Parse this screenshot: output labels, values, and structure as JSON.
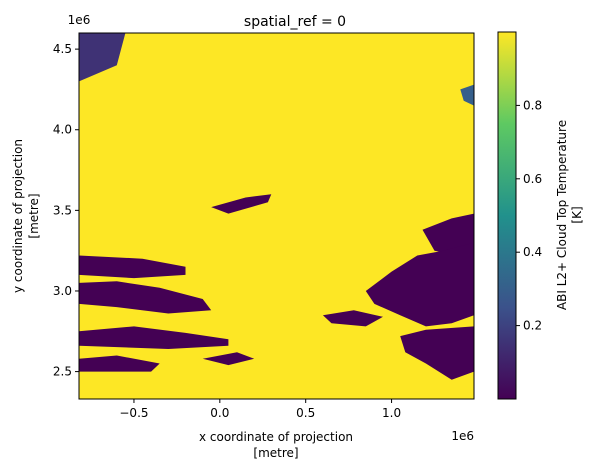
{
  "chart_data": {
    "type": "heatmap",
    "title": "spatial_ref = 0",
    "xlabel": [
      "x coordinate of projection",
      "[metre]"
    ],
    "ylabel": [
      "y coordinate of projection",
      "[metre]"
    ],
    "xlim": [
      -0.82,
      1.48
    ],
    "ylim": [
      2.33,
      4.6
    ],
    "x_offset_label": "1e6",
    "y_offset_label": "1e6",
    "x_ticks": [
      {
        "value": -0.5,
        "label": "−0.5"
      },
      {
        "value": 0.0,
        "label": "0.0"
      },
      {
        "value": 0.5,
        "label": "0.5"
      },
      {
        "value": 1.0,
        "label": "1.0"
      }
    ],
    "y_ticks": [
      {
        "value": 2.5,
        "label": "2.5"
      },
      {
        "value": 3.0,
        "label": "3.0"
      },
      {
        "value": 3.5,
        "label": "3.5"
      },
      {
        "value": 4.0,
        "label": "4.0"
      },
      {
        "value": 4.5,
        "label": "4.5"
      }
    ],
    "colorbar": {
      "label": [
        "ABI L2+ Cloud Top Temperature",
        "[K]"
      ],
      "range": [
        0.0,
        1.0
      ],
      "colormap": [
        "#440154",
        "#3b528b",
        "#21918c",
        "#5ec962",
        "#fde725"
      ],
      "ticks": [
        {
          "value": 0.2,
          "label": "0.2"
        },
        {
          "value": 0.4,
          "label": "0.4"
        },
        {
          "value": 0.6,
          "label": "0.6"
        },
        {
          "value": 0.8,
          "label": "0.8"
        }
      ]
    },
    "background_value": 1.0,
    "low_regions": [
      {
        "name": "northwest-speckle",
        "points": [
          [
            -0.82,
            4.6
          ],
          [
            -0.55,
            4.6
          ],
          [
            -0.6,
            4.4
          ],
          [
            -0.82,
            4.3
          ]
        ],
        "value": 0.15
      },
      {
        "name": "west-band-upper",
        "points": [
          [
            -0.82,
            3.22
          ],
          [
            -0.45,
            3.2
          ],
          [
            -0.2,
            3.15
          ],
          [
            -0.2,
            3.1
          ],
          [
            -0.5,
            3.08
          ],
          [
            -0.82,
            3.1
          ]
        ],
        "value": 0.0
      },
      {
        "name": "west-band-middle",
        "points": [
          [
            -0.82,
            3.05
          ],
          [
            -0.6,
            3.06
          ],
          [
            -0.35,
            3.02
          ],
          [
            -0.1,
            2.95
          ],
          [
            -0.05,
            2.88
          ],
          [
            -0.3,
            2.86
          ],
          [
            -0.6,
            2.9
          ],
          [
            -0.82,
            2.92
          ]
        ],
        "value": 0.0
      },
      {
        "name": "west-band-lower",
        "points": [
          [
            -0.82,
            2.75
          ],
          [
            -0.5,
            2.78
          ],
          [
            -0.2,
            2.74
          ],
          [
            0.05,
            2.7
          ],
          [
            0.05,
            2.66
          ],
          [
            -0.3,
            2.64
          ],
          [
            -0.82,
            2.66
          ]
        ],
        "value": 0.0
      },
      {
        "name": "west-band-bottom",
        "points": [
          [
            -0.82,
            2.58
          ],
          [
            -0.6,
            2.6
          ],
          [
            -0.35,
            2.55
          ],
          [
            -0.4,
            2.5
          ],
          [
            -0.82,
            2.5
          ]
        ],
        "value": 0.0
      },
      {
        "name": "central-streak",
        "points": [
          [
            -0.05,
            3.52
          ],
          [
            0.15,
            3.58
          ],
          [
            0.3,
            3.6
          ],
          [
            0.28,
            3.55
          ],
          [
            0.05,
            3.48
          ]
        ],
        "value": 0.0
      },
      {
        "name": "east-patch-upper",
        "points": [
          [
            1.18,
            3.38
          ],
          [
            1.35,
            3.45
          ],
          [
            1.48,
            3.48
          ],
          [
            1.48,
            3.28
          ],
          [
            1.4,
            3.22
          ],
          [
            1.25,
            3.25
          ]
        ],
        "value": 0.0
      },
      {
        "name": "east-patch-main",
        "points": [
          [
            0.85,
            3.0
          ],
          [
            1.0,
            3.12
          ],
          [
            1.15,
            3.22
          ],
          [
            1.3,
            3.25
          ],
          [
            1.48,
            3.3
          ],
          [
            1.48,
            2.85
          ],
          [
            1.35,
            2.8
          ],
          [
            1.2,
            2.78
          ],
          [
            1.05,
            2.85
          ],
          [
            0.9,
            2.92
          ]
        ],
        "value": 0.0
      },
      {
        "name": "east-patch-lower",
        "points": [
          [
            1.05,
            2.72
          ],
          [
            1.2,
            2.76
          ],
          [
            1.48,
            2.78
          ],
          [
            1.48,
            2.5
          ],
          [
            1.35,
            2.45
          ],
          [
            1.2,
            2.55
          ],
          [
            1.08,
            2.62
          ]
        ],
        "value": 0.0
      },
      {
        "name": "southeast-fragment",
        "points": [
          [
            0.6,
            2.85
          ],
          [
            0.78,
            2.88
          ],
          [
            0.95,
            2.84
          ],
          [
            0.85,
            2.78
          ],
          [
            0.65,
            2.8
          ]
        ],
        "value": 0.0
      },
      {
        "name": "south-fragment",
        "points": [
          [
            -0.1,
            2.58
          ],
          [
            0.1,
            2.62
          ],
          [
            0.2,
            2.58
          ],
          [
            0.05,
            2.54
          ]
        ],
        "value": 0.0
      },
      {
        "name": "northeast-edge",
        "points": [
          [
            1.4,
            4.25
          ],
          [
            1.48,
            4.28
          ],
          [
            1.48,
            4.15
          ],
          [
            1.42,
            4.18
          ]
        ],
        "value": 0.3
      }
    ]
  }
}
